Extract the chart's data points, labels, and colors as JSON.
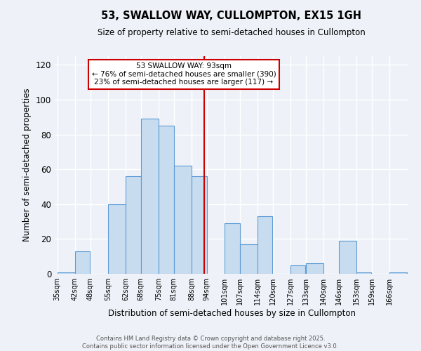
{
  "title": "53, SWALLOW WAY, CULLOMPTON, EX15 1GH",
  "subtitle": "Size of property relative to semi-detached houses in Cullompton",
  "xlabel": "Distribution of semi-detached houses by size in Cullompton",
  "ylabel": "Number of semi-detached properties",
  "bin_labels": [
    "35sqm",
    "42sqm",
    "48sqm",
    "55sqm",
    "62sqm",
    "68sqm",
    "75sqm",
    "81sqm",
    "88sqm",
    "94sqm",
    "101sqm",
    "107sqm",
    "114sqm",
    "120sqm",
    "127sqm",
    "133sqm",
    "140sqm",
    "146sqm",
    "153sqm",
    "159sqm",
    "166sqm"
  ],
  "bin_edges": [
    35,
    42,
    48,
    55,
    62,
    68,
    75,
    81,
    88,
    94,
    101,
    107,
    114,
    120,
    127,
    133,
    140,
    146,
    153,
    159,
    166
  ],
  "counts": [
    1,
    13,
    0,
    40,
    56,
    89,
    85,
    62,
    56,
    0,
    29,
    17,
    33,
    0,
    5,
    6,
    0,
    19,
    1,
    0,
    1
  ],
  "bar_color": "#c8dcf0",
  "bar_edge_color": "#5b9bd5",
  "property_size": 93,
  "vline_color": "#cc0000",
  "annotation_title": "53 SWALLOW WAY: 93sqm",
  "annotation_line1": "← 76% of semi-detached houses are smaller (390)",
  "annotation_line2": "23% of semi-detached houses are larger (117) →",
  "annotation_box_edge": "#cc0000",
  "ylim": [
    0,
    125
  ],
  "yticks": [
    0,
    20,
    40,
    60,
    80,
    100,
    120
  ],
  "footer1": "Contains HM Land Registry data © Crown copyright and database right 2025.",
  "footer2": "Contains public sector information licensed under the Open Government Licence v3.0.",
  "bg_color": "#eef2f8",
  "grid_color": "#ffffff"
}
